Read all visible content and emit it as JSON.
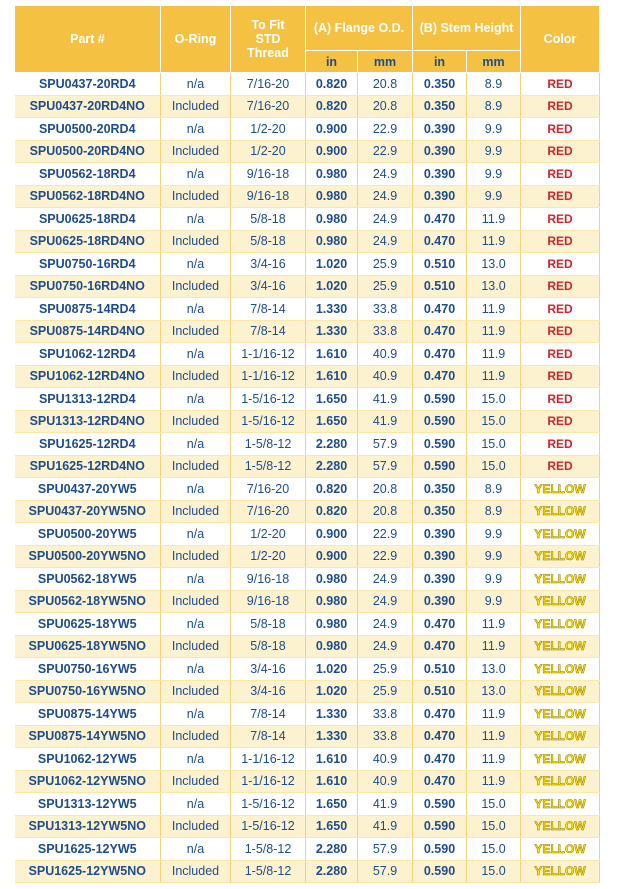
{
  "table": {
    "headers": [
      "Part #",
      "O-Ring",
      "To Fit STD Thread",
      "(A) Flange O.D.",
      "(B) Stem Height",
      "Color"
    ],
    "subheaders": [
      "in",
      "mm",
      "in",
      "mm"
    ],
    "rows": [
      [
        "SPU0437-20RD4",
        "n/a",
        "7/16-20",
        "0.820",
        "20.8",
        "0.350",
        "8.9",
        "RED"
      ],
      [
        "SPU0437-20RD4NO",
        "Included",
        "7/16-20",
        "0.820",
        "20.8",
        "0.350",
        "8.9",
        "RED"
      ],
      [
        "SPU0500-20RD4",
        "n/a",
        "1/2-20",
        "0.900",
        "22.9",
        "0.390",
        "9.9",
        "RED"
      ],
      [
        "SPU0500-20RD4NO",
        "Included",
        "1/2-20",
        "0.900",
        "22.9",
        "0.390",
        "9.9",
        "RED"
      ],
      [
        "SPU0562-18RD4",
        "n/a",
        "9/16-18",
        "0.980",
        "24.9",
        "0.390",
        "9.9",
        "RED"
      ],
      [
        "SPU0562-18RD4NO",
        "Included",
        "9/16-18",
        "0.980",
        "24.9",
        "0.390",
        "9.9",
        "RED"
      ],
      [
        "SPU0625-18RD4",
        "n/a",
        "5/8-18",
        "0.980",
        "24.9",
        "0.470",
        "11.9",
        "RED"
      ],
      [
        "SPU0625-18RD4NO",
        "Included",
        "5/8-18",
        "0.980",
        "24.9",
        "0.470",
        "11.9",
        "RED"
      ],
      [
        "SPU0750-16RD4",
        "n/a",
        "3/4-16",
        "1.020",
        "25.9",
        "0.510",
        "13.0",
        "RED"
      ],
      [
        "SPU0750-16RD4NO",
        "Included",
        "3/4-16",
        "1.020",
        "25.9",
        "0.510",
        "13.0",
        "RED"
      ],
      [
        "SPU0875-14RD4",
        "n/a",
        "7/8-14",
        "1.330",
        "33.8",
        "0.470",
        "11.9",
        "RED"
      ],
      [
        "SPU0875-14RD4NO",
        "Included",
        "7/8-14",
        "1.330",
        "33.8",
        "0.470",
        "11.9",
        "RED"
      ],
      [
        "SPU1062-12RD4",
        "n/a",
        "1-1/16-12",
        "1.610",
        "40.9",
        "0.470",
        "11.9",
        "RED"
      ],
      [
        "SPU1062-12RD4NO",
        "Included",
        "1-1/16-12",
        "1.610",
        "40.9",
        "0.470",
        "11.9",
        "RED"
      ],
      [
        "SPU1313-12RD4",
        "n/a",
        "1-5/16-12",
        "1.650",
        "41.9",
        "0.590",
        "15.0",
        "RED"
      ],
      [
        "SPU1313-12RD4NO",
        "Included",
        "1-5/16-12",
        "1.650",
        "41.9",
        "0.590",
        "15.0",
        "RED"
      ],
      [
        "SPU1625-12RD4",
        "n/a",
        "1-5/8-12",
        "2.280",
        "57.9",
        "0.590",
        "15.0",
        "RED"
      ],
      [
        "SPU1625-12RD4NO",
        "Included",
        "1-5/8-12",
        "2.280",
        "57.9",
        "0.590",
        "15.0",
        "RED"
      ],
      [
        "SPU0437-20YW5",
        "n/a",
        "7/16-20",
        "0.820",
        "20.8",
        "0.350",
        "8.9",
        "YELLOW"
      ],
      [
        "SPU0437-20YW5NO",
        "Included",
        "7/16-20",
        "0.820",
        "20.8",
        "0.350",
        "8.9",
        "YELLOW"
      ],
      [
        "SPU0500-20YW5",
        "n/a",
        "1/2-20",
        "0.900",
        "22.9",
        "0.390",
        "9.9",
        "YELLOW"
      ],
      [
        "SPU0500-20YW5NO",
        "Included",
        "1/2-20",
        "0.900",
        "22.9",
        "0.390",
        "9.9",
        "YELLOW"
      ],
      [
        "SPU0562-18YW5",
        "n/a",
        "9/16-18",
        "0.980",
        "24.9",
        "0.390",
        "9.9",
        "YELLOW"
      ],
      [
        "SPU0562-18YW5NO",
        "Included",
        "9/16-18",
        "0.980",
        "24.9",
        "0.390",
        "9.9",
        "YELLOW"
      ],
      [
        "SPU0625-18YW5",
        "n/a",
        "5/8-18",
        "0.980",
        "24.9",
        "0.470",
        "11.9",
        "YELLOW"
      ],
      [
        "SPU0625-18YW5NO",
        "Included",
        "5/8-18",
        "0.980",
        "24.9",
        "0.470",
        "11.9",
        "YELLOW"
      ],
      [
        "SPU0750-16YW5",
        "n/a",
        "3/4-16",
        "1.020",
        "25.9",
        "0.510",
        "13.0",
        "YELLOW"
      ],
      [
        "SPU0750-16YW5NO",
        "Included",
        "3/4-16",
        "1.020",
        "25.9",
        "0.510",
        "13.0",
        "YELLOW"
      ],
      [
        "SPU0875-14YW5",
        "n/a",
        "7/8-14",
        "1.330",
        "33.8",
        "0.470",
        "11.9",
        "YELLOW"
      ],
      [
        "SPU0875-14YW5NO",
        "Included",
        "7/8-14",
        "1.330",
        "33.8",
        "0.470",
        "11.9",
        "YELLOW"
      ],
      [
        "SPU1062-12YW5",
        "n/a",
        "1-1/16-12",
        "1.610",
        "40.9",
        "0.470",
        "11.9",
        "YELLOW"
      ],
      [
        "SPU1062-12YW5NO",
        "Included",
        "1-1/16-12",
        "1.610",
        "40.9",
        "0.470",
        "11.9",
        "YELLOW"
      ],
      [
        "SPU1313-12YW5",
        "n/a",
        "1-5/16-12",
        "1.650",
        "41.9",
        "0.590",
        "15.0",
        "YELLOW"
      ],
      [
        "SPU1313-12YW5NO",
        "Included",
        "1-5/16-12",
        "1.650",
        "41.9",
        "0.590",
        "15.0",
        "YELLOW"
      ],
      [
        "SPU1625-12YW5",
        "n/a",
        "1-5/8-12",
        "2.280",
        "57.9",
        "0.590",
        "15.0",
        "YELLOW"
      ],
      [
        "SPU1625-12YW5NO",
        "Included",
        "1-5/8-12",
        "2.280",
        "57.9",
        "0.590",
        "15.0",
        "YELLOW"
      ]
    ]
  }
}
